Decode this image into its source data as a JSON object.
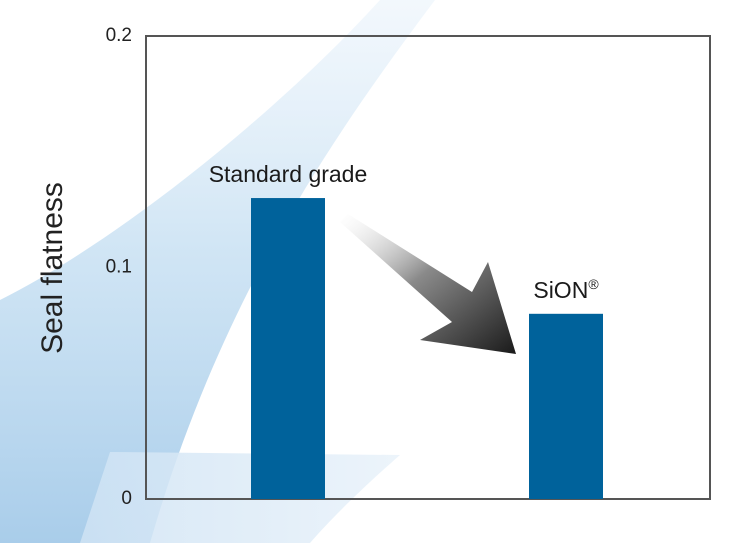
{
  "chart_data": {
    "type": "bar",
    "title": "",
    "xlabel": "",
    "ylabel": "Seal flatness",
    "ylim": [
      0,
      0.2
    ],
    "yticks": [
      "0",
      "0.1",
      "0.2"
    ],
    "categories": [
      "Standard grade",
      "SiON"
    ],
    "category_marks": [
      "",
      "®"
    ],
    "values": [
      0.13,
      0.08
    ],
    "grid": false,
    "legend": "none",
    "annotation": "arrow-from-first-to-second-bar"
  },
  "colors": {
    "bar": "#00629b",
    "axis": "#555555",
    "background_swoosh": "#bcd9ef",
    "arrow_dark": "#1a1a1a",
    "arrow_light": "#ffffff"
  }
}
